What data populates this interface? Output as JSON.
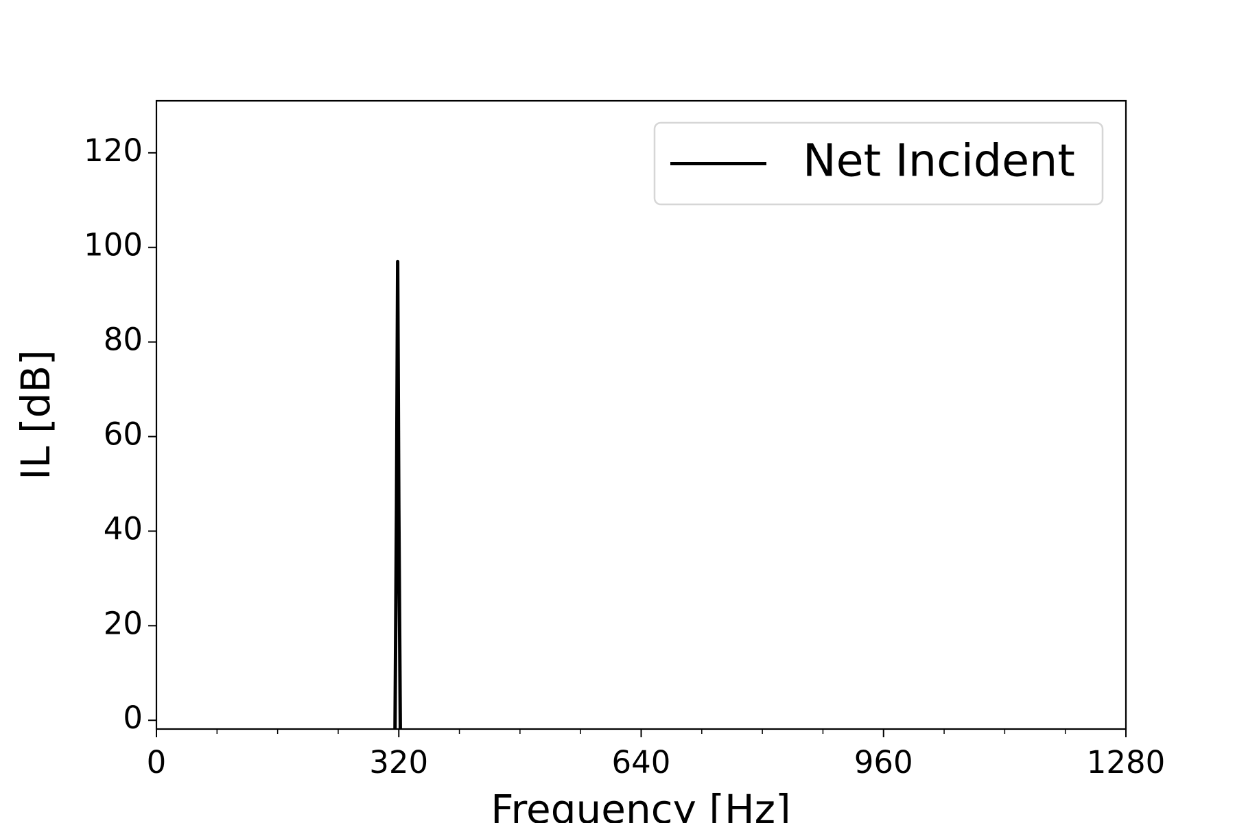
{
  "chart_data": {
    "type": "line",
    "x_label": "Frequency [Hz]",
    "y_label": "IL [dB]",
    "x": [
      315,
      317,
      318.5,
      320,
      322
    ],
    "series": [
      {
        "name": "Net Incident",
        "color": "#000000",
        "values": [
          -2,
          45,
          97,
          45,
          -2
        ]
      }
    ],
    "xlim": [
      0,
      1280
    ],
    "xticks": [
      0,
      320,
      640,
      960,
      1280
    ],
    "xminorticks": [
      80,
      160,
      240,
      400,
      480,
      560,
      720,
      800,
      880,
      1040,
      1120,
      1200
    ],
    "ylim": [
      -1.85,
      131
    ],
    "yticks": [
      0,
      20,
      40,
      60,
      80,
      100,
      120
    ],
    "grid": false,
    "legend": "upper right"
  }
}
